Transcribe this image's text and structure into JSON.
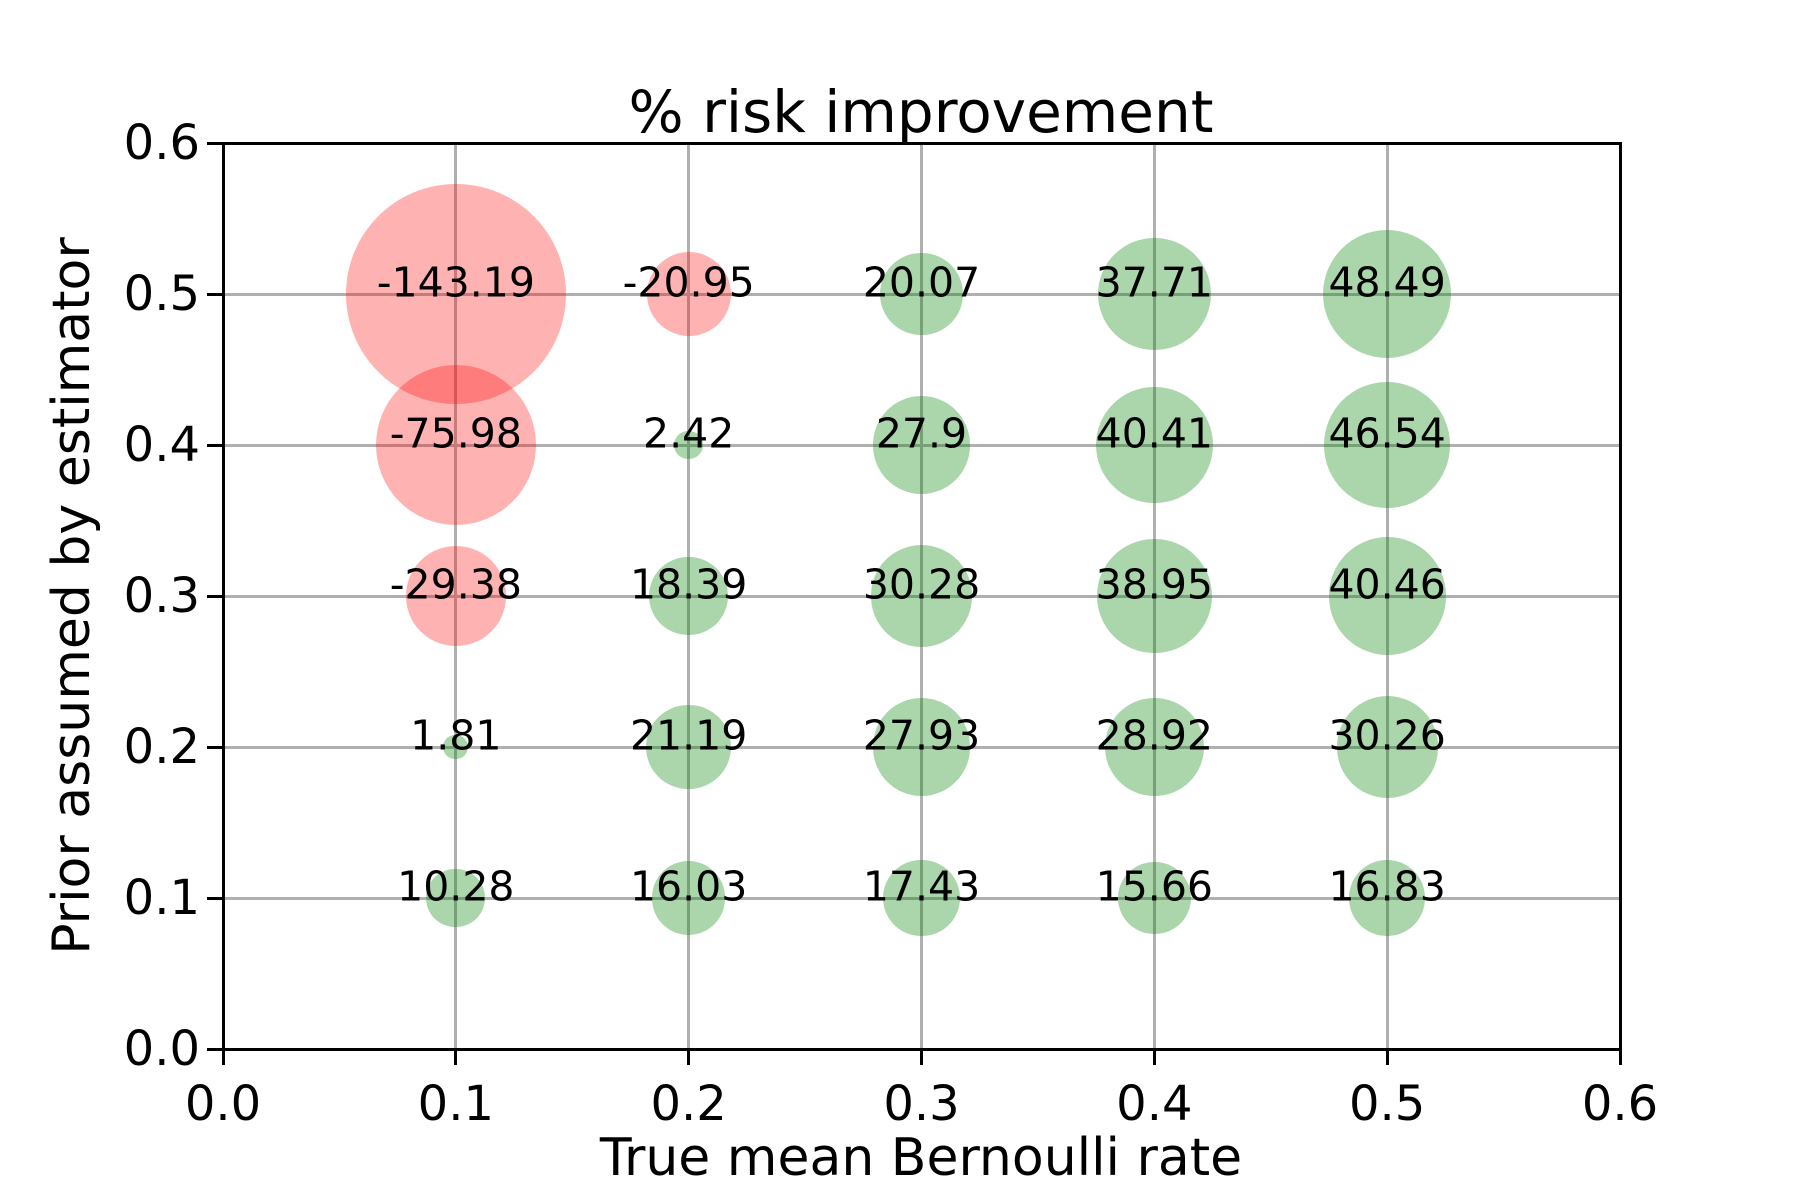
{
  "chart_data": {
    "type": "scatter",
    "title": "% risk improvement",
    "xlabel": "True mean Bernoulli rate",
    "ylabel": "Prior assumed by estimator",
    "xlim": [
      0.0,
      0.6
    ],
    "ylim": [
      0.0,
      0.6
    ],
    "x_ticks": [
      "0.0",
      "0.1",
      "0.2",
      "0.3",
      "0.4",
      "0.5",
      "0.6"
    ],
    "y_ticks": [
      "0.0",
      "0.1",
      "0.2",
      "0.3",
      "0.4",
      "0.5",
      "0.6"
    ],
    "grid": true,
    "grid_color": "#b0b0b0",
    "spine_color": "#000000",
    "text_color": "#000000",
    "bubble_color_positive": "#008000",
    "bubble_color_negative": "#ff0000",
    "bubble_alpha_positive": 0.33,
    "bubble_alpha_negative": 0.3,
    "points": [
      {
        "x": 0.1,
        "y": 0.5,
        "value": -143.19,
        "label": "-143.19"
      },
      {
        "x": 0.2,
        "y": 0.5,
        "value": -20.95,
        "label": "-20.95"
      },
      {
        "x": 0.3,
        "y": 0.5,
        "value": 20.07,
        "label": "20.07"
      },
      {
        "x": 0.4,
        "y": 0.5,
        "value": 37.71,
        "label": "37.71"
      },
      {
        "x": 0.5,
        "y": 0.5,
        "value": 48.49,
        "label": "48.49"
      },
      {
        "x": 0.1,
        "y": 0.4,
        "value": -75.98,
        "label": "-75.98"
      },
      {
        "x": 0.2,
        "y": 0.4,
        "value": 2.42,
        "label": "2.42"
      },
      {
        "x": 0.3,
        "y": 0.4,
        "value": 27.9,
        "label": "27.9"
      },
      {
        "x": 0.4,
        "y": 0.4,
        "value": 40.41,
        "label": "40.41"
      },
      {
        "x": 0.5,
        "y": 0.4,
        "value": 46.54,
        "label": "46.54"
      },
      {
        "x": 0.1,
        "y": 0.3,
        "value": -29.38,
        "label": "-29.38"
      },
      {
        "x": 0.2,
        "y": 0.3,
        "value": 18.39,
        "label": "18.39"
      },
      {
        "x": 0.3,
        "y": 0.3,
        "value": 30.28,
        "label": "30.28"
      },
      {
        "x": 0.4,
        "y": 0.3,
        "value": 38.95,
        "label": "38.95"
      },
      {
        "x": 0.5,
        "y": 0.3,
        "value": 40.46,
        "label": "40.46"
      },
      {
        "x": 0.1,
        "y": 0.2,
        "value": 1.81,
        "label": "1.81"
      },
      {
        "x": 0.2,
        "y": 0.2,
        "value": 21.19,
        "label": "21.19"
      },
      {
        "x": 0.3,
        "y": 0.2,
        "value": 27.93,
        "label": "27.93"
      },
      {
        "x": 0.4,
        "y": 0.2,
        "value": 28.92,
        "label": "28.92"
      },
      {
        "x": 0.5,
        "y": 0.2,
        "value": 30.26,
        "label": "30.26"
      },
      {
        "x": 0.1,
        "y": 0.1,
        "value": 10.28,
        "label": "10.28"
      },
      {
        "x": 0.2,
        "y": 0.1,
        "value": 16.03,
        "label": "16.03"
      },
      {
        "x": 0.3,
        "y": 0.1,
        "value": 17.43,
        "label": "17.43"
      },
      {
        "x": 0.4,
        "y": 0.1,
        "value": 15.66,
        "label": "15.66"
      },
      {
        "x": 0.5,
        "y": 0.1,
        "value": 16.83,
        "label": "16.83"
      }
    ]
  }
}
